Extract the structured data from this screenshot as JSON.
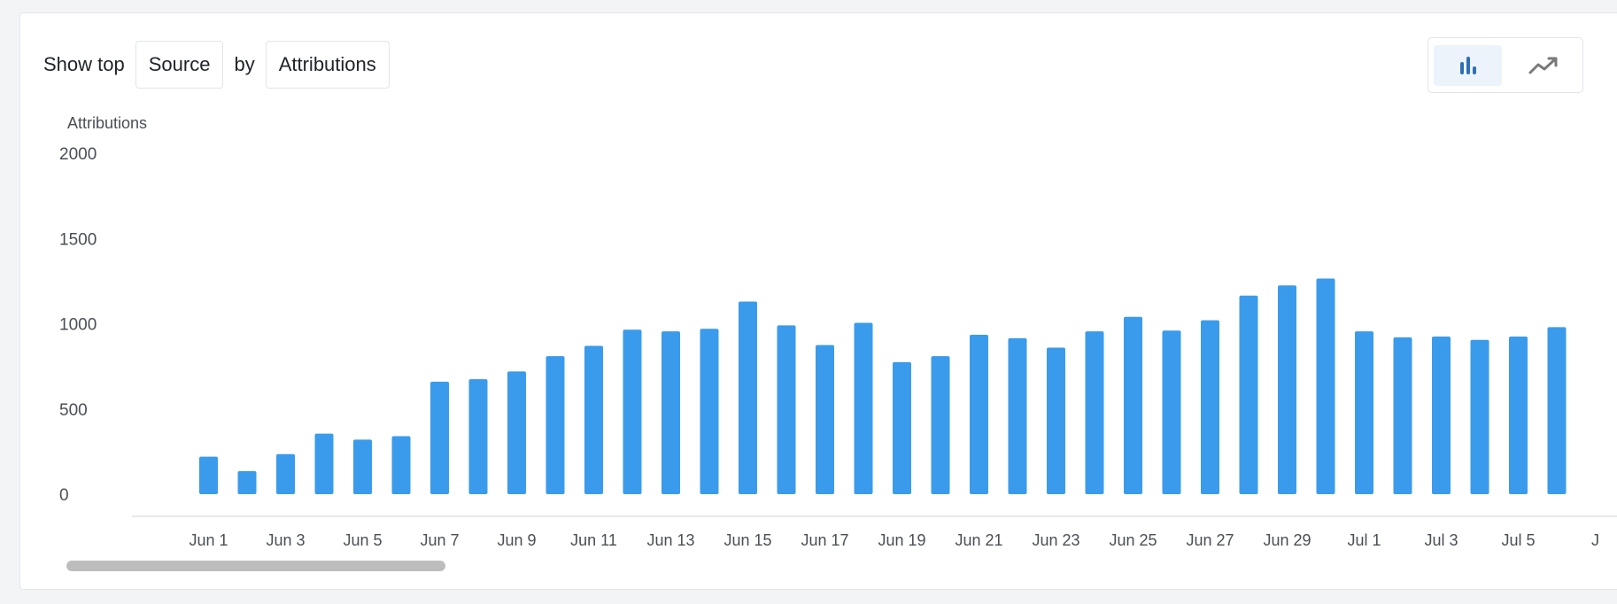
{
  "controls": {
    "show_top_label": "Show top",
    "dimension_value": "Source",
    "by_label": "by",
    "metric_value": "Attributions"
  },
  "view_toggle": {
    "options": [
      {
        "icon": "bar-chart-icon",
        "active": true
      },
      {
        "icon": "line-chart-icon",
        "active": false
      }
    ],
    "active_color": "#2f6fb5",
    "inactive_color": "#7a7a7a"
  },
  "colors": {
    "bar": "#3a9bec",
    "axis": "#dfe2e6",
    "text": "#4a4f55"
  },
  "chart_data": {
    "type": "bar",
    "ylabel": "Attributions",
    "xlabel": "",
    "ylim": [
      0,
      2000
    ],
    "yticks": [
      0,
      500,
      1000,
      1500,
      2000
    ],
    "grid": false,
    "categories": [
      "Jun 1",
      "Jun 2",
      "Jun 3",
      "Jun 4",
      "Jun 5",
      "Jun 6",
      "Jun 7",
      "Jun 8",
      "Jun 9",
      "Jun 10",
      "Jun 11",
      "Jun 12",
      "Jun 13",
      "Jun 14",
      "Jun 15",
      "Jun 16",
      "Jun 17",
      "Jun 18",
      "Jun 19",
      "Jun 20",
      "Jun 21",
      "Jun 22",
      "Jun 23",
      "Jun 24",
      "Jun 25",
      "Jun 26",
      "Jun 27",
      "Jun 28",
      "Jun 29",
      "Jun 30",
      "Jul 1",
      "Jul 2",
      "Jul 3",
      "Jul 4",
      "Jul 5",
      "Jul 6"
    ],
    "values": [
      220,
      135,
      235,
      355,
      320,
      340,
      660,
      675,
      720,
      810,
      870,
      965,
      955,
      970,
      1130,
      990,
      875,
      1005,
      775,
      810,
      935,
      915,
      860,
      955,
      1040,
      960,
      1020,
      1165,
      1225,
      1265,
      955,
      920,
      925,
      905,
      925,
      980
    ],
    "xtick_labels": [
      "Jun 1",
      "Jun 3",
      "Jun 5",
      "Jun 7",
      "Jun 9",
      "Jun 11",
      "Jun 13",
      "Jun 15",
      "Jun 17",
      "Jun 19",
      "Jun 21",
      "Jun 23",
      "Jun 25",
      "Jun 27",
      "Jun 29",
      "Jul 1",
      "Jul 3",
      "Jul 5",
      "J"
    ]
  }
}
